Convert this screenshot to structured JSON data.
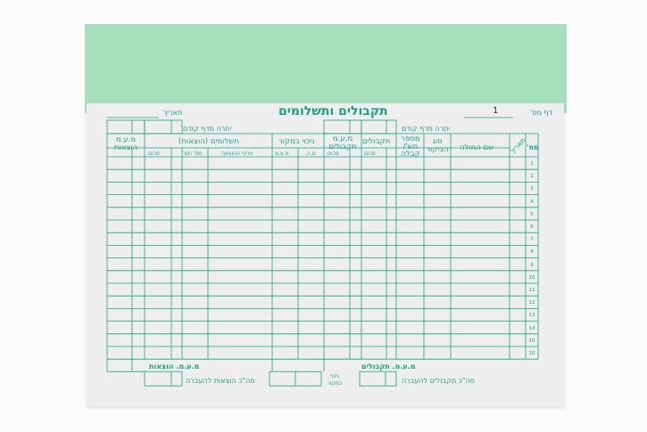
{
  "form": {
    "title": "תקבולים ותשלומים",
    "page_label": "דף מס'",
    "page_value": "1",
    "date_label": "תאריך",
    "carry_right": "יתרה מדף קודם",
    "carry_left": "יתרה מדף קודם",
    "columns": {
      "row_no": "מס'",
      "date": "תאריך",
      "patient": "שם החולה",
      "visit_type": "סוג הביקור",
      "invoice_no": "מספר חש'/ קבלה",
      "receipts": "תקבולים",
      "vat_receipts": "מ.ע.מ תקבולים",
      "withholding": "ניכוי במקור",
      "payments": "תשלומים (הוצאות)",
      "vat_expenses": "מ.ע.מ הוצאות"
    },
    "subcolumns": {
      "receipts_sum": "סכום",
      "vat_receipts_sum": "סכום",
      "wh_income": "מ.ה.",
      "wh_vat": "מ.ע.מ",
      "expense_details": "פרטי ההוצאה",
      "expense_invoice": "מס' חש'",
      "expense_sum": "סכום"
    },
    "rows": [
      "1",
      "2",
      "3",
      "4",
      "5",
      "6",
      "7",
      "8",
      "9",
      "10",
      "11",
      "12",
      "13",
      "14",
      "15",
      "16"
    ],
    "footer": {
      "vat_receipts": "מ.ע.מ. תקבולים",
      "vat_expenses": "מ.ע.מ. הוצאות",
      "receipts_transfer": "סה\"כ תקבולים להעברה",
      "expenses_transfer": "סה\"כ הוצאות להעברה",
      "withholding": "ניכוי במקור"
    }
  },
  "colors": {
    "ink": "#1aa37a",
    "green_sheet": "#a6dfbb",
    "paper": "#eeeef0"
  }
}
